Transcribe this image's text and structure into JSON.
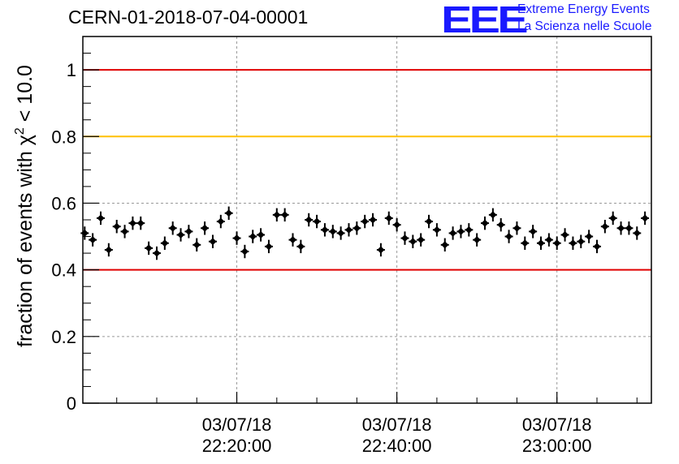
{
  "header": {
    "run_title": "CERN-01-2018-07-04-00001",
    "logo_text": "EEE",
    "logo_line1": "Extreme Energy Events",
    "logo_line2": "La Scienza nelle Scuole"
  },
  "colors": {
    "red_line": "#e00000",
    "yellow_line": "#ffc000",
    "marker": "#000000",
    "brand": "#1a1aff"
  },
  "chart_data": {
    "type": "scatter",
    "title": "CERN-01-2018-07-04-00001",
    "ylabel_main": "fraction of events with χ",
    "ylabel_sup": "2",
    "ylabel_tail": " < 10.0",
    "xlabel": "",
    "ylim": [
      0,
      1.1
    ],
    "yticks": [
      "0",
      "0.2",
      "0.4",
      "0.6",
      "0.8",
      "1"
    ],
    "xlim": [
      "2018-07-03 22:00:46",
      "2018-07-03 23:11:48"
    ],
    "xticks": [
      {
        "date": "03/07/18",
        "time": "22:20:00"
      },
      {
        "date": "03/07/18",
        "time": "22:40:00"
      },
      {
        "date": "03/07/18",
        "time": "23:00:00"
      }
    ],
    "grid": true,
    "reference_lines": [
      {
        "y": 1.0,
        "color": "red"
      },
      {
        "y": 0.8,
        "color": "yellow"
      },
      {
        "y": 0.4,
        "color": "red"
      }
    ],
    "series": [
      {
        "x": [
          "22:01:00",
          "22:02:00",
          "22:03:00",
          "22:04:00",
          "22:05:00",
          "22:06:00",
          "22:07:00",
          "22:08:00",
          "22:09:00",
          "22:10:00",
          "22:11:00",
          "22:12:00",
          "22:13:00",
          "22:14:00",
          "22:15:00",
          "22:16:00",
          "22:17:00",
          "22:18:00",
          "22:19:00",
          "22:20:00",
          "22:21:00",
          "22:22:00",
          "22:23:00",
          "22:24:00",
          "22:25:00",
          "22:26:00",
          "22:27:00",
          "22:28:00",
          "22:29:00",
          "22:30:00",
          "22:31:00",
          "22:32:00",
          "22:33:00",
          "22:34:00",
          "22:35:00",
          "22:36:00",
          "22:37:00",
          "22:38:00",
          "22:39:00",
          "22:40:00",
          "22:41:00",
          "22:42:00",
          "22:43:00",
          "22:44:00",
          "22:45:00",
          "22:46:00",
          "22:47:00",
          "22:48:00",
          "22:49:00",
          "22:50:00",
          "22:51:00",
          "22:52:00",
          "22:53:00",
          "22:54:00",
          "22:55:00",
          "22:56:00",
          "22:57:00",
          "22:58:00",
          "22:59:00",
          "23:00:00",
          "23:01:00",
          "23:02:00",
          "23:03:00",
          "23:04:00",
          "23:05:00",
          "23:06:00",
          "23:07:00",
          "23:08:00",
          "23:09:00",
          "23:10:00",
          "23:11:00"
        ],
        "y": [
          0.51,
          0.49,
          0.555,
          0.46,
          0.53,
          0.515,
          0.54,
          0.54,
          0.465,
          0.45,
          0.48,
          0.525,
          0.505,
          0.515,
          0.475,
          0.525,
          0.485,
          0.545,
          0.57,
          0.495,
          0.455,
          0.5,
          0.505,
          0.47,
          0.565,
          0.565,
          0.49,
          0.47,
          0.55,
          0.545,
          0.52,
          0.515,
          0.51,
          0.52,
          0.525,
          0.545,
          0.55,
          0.46,
          0.555,
          0.535,
          0.495,
          0.485,
          0.49,
          0.545,
          0.52,
          0.475,
          0.51,
          0.515,
          0.52,
          0.49,
          0.54,
          0.565,
          0.535,
          0.5,
          0.525,
          0.48,
          0.515,
          0.48,
          0.49,
          0.48,
          0.505,
          0.48,
          0.485,
          0.5,
          0.47,
          0.53,
          0.555,
          0.525,
          0.525,
          0.51,
          0.555
        ],
        "yerr": 0.02
      }
    ]
  }
}
